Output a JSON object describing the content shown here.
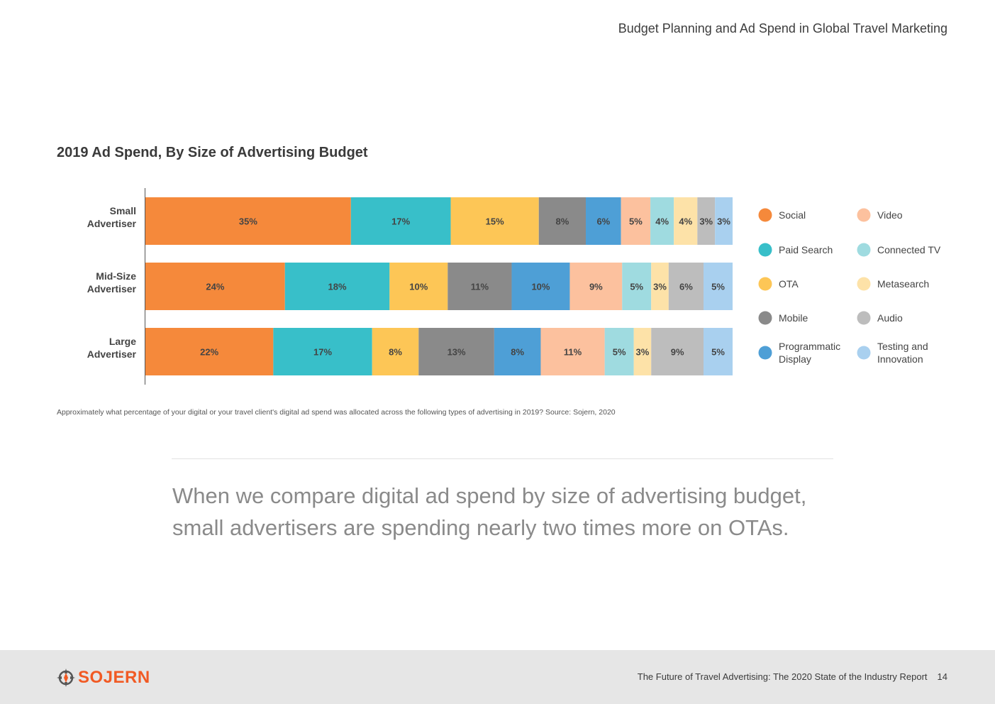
{
  "header": {
    "title": "Budget Planning and Ad Spend in Global Travel Marketing"
  },
  "chart_data": {
    "type": "bar",
    "orientation": "horizontal",
    "stacked": true,
    "title": "2019 Ad Spend, By Size of Advertising Budget",
    "categories": [
      [
        "Small",
        "Advertiser"
      ],
      [
        "Mid-Size",
        "Advertiser"
      ],
      [
        "Large",
        "Advertiser"
      ]
    ],
    "series": [
      {
        "name": "Social",
        "color": "#f5893b",
        "values": [
          35,
          24,
          22
        ]
      },
      {
        "name": "Paid Search",
        "color": "#38bfc9",
        "values": [
          17,
          18,
          17
        ]
      },
      {
        "name": "OTA",
        "color": "#fdc656",
        "values": [
          15,
          10,
          8
        ]
      },
      {
        "name": "Mobile",
        "color": "#8a8a8a",
        "values": [
          8,
          11,
          13
        ]
      },
      {
        "name": "Programmatic Display",
        "color": "#4e9fd6",
        "values": [
          6,
          10,
          8
        ]
      },
      {
        "name": "Video",
        "color": "#fcc19e",
        "values": [
          5,
          9,
          11
        ]
      },
      {
        "name": "Connected TV",
        "color": "#9fdbe0",
        "values": [
          4,
          5,
          5
        ]
      },
      {
        "name": "Metasearch",
        "color": "#fde2a8",
        "values": [
          4,
          3,
          3
        ]
      },
      {
        "name": "Audio",
        "color": "#bdbdbd",
        "values": [
          3,
          6,
          9
        ]
      },
      {
        "name": "Testing and Innovation",
        "color": "#a9d0ef",
        "values": [
          3,
          5,
          5
        ]
      }
    ],
    "value_suffix": "%",
    "legend_position": "right",
    "grid": false
  },
  "footnote": "Approximately what percentage of your digital or your travel client's digital ad spend was allocated across the following types of advertising in 2019? Source: Sojern, 2020",
  "quote": "When we compare digital ad spend by size of advertising budget, small advertisers are spending nearly two times more on OTAs.",
  "footer": {
    "logo_text": "SOJERN",
    "logo_icon": "compass-icon",
    "report_title": "The Future of Travel Advertising: The 2020 State of the Industry Report",
    "page_number": "14"
  }
}
